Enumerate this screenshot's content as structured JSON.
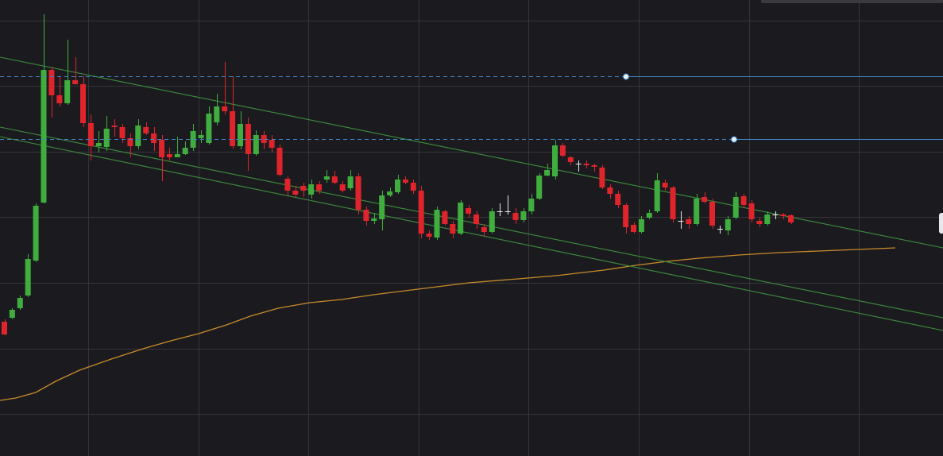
{
  "colors": {
    "background": "#1b1b1f",
    "grid": "#34343a",
    "bull": "#3fae3f",
    "bear": "#e0242b",
    "doji": "#e8e8e8",
    "trendline": "#3d8f3d",
    "moving_average": "#c98a2a",
    "horizontal_line": "#3f86c6",
    "handle": "#e8f2fb"
  },
  "chart_data": {
    "type": "candlestick",
    "title": "",
    "xlabel": "",
    "ylabel": "",
    "x_range": [
      0,
      115
    ],
    "y_range": [
      0,
      574
    ],
    "y_direction": "increasing-down",
    "grid": true,
    "grid_x": [
      11,
      25,
      39,
      53,
      67,
      81,
      95,
      109
    ],
    "grid_y": [
      26,
      108,
      191,
      273,
      356,
      439,
      521
    ],
    "candles": [
      [
        0,
        405,
        421,
        402,
        422
      ],
      [
        1,
        400,
        390,
        388,
        402
      ],
      [
        2,
        388,
        375,
        372,
        390
      ],
      [
        3,
        372,
        326,
        320,
        374
      ],
      [
        4,
        328,
        259,
        256,
        330
      ],
      [
        5,
        255,
        88,
        18,
        256
      ],
      [
        6,
        88,
        120,
        84,
        148
      ],
      [
        7,
        120,
        130,
        96,
        134
      ],
      [
        8,
        130,
        101,
        50,
        132
      ],
      [
        9,
        101,
        106,
        72,
        106
      ],
      [
        10,
        106,
        155,
        96,
        160
      ],
      [
        11,
        155,
        184,
        144,
        202
      ],
      [
        12,
        184,
        180,
        165,
        192
      ],
      [
        13,
        185,
        162,
        146,
        190
      ],
      [
        14,
        158,
        160,
        150,
        172
      ],
      [
        15,
        160,
        174,
        156,
        180
      ],
      [
        16,
        174,
        184,
        168,
        198
      ],
      [
        17,
        184,
        158,
        150,
        188
      ],
      [
        18,
        160,
        168,
        154,
        170
      ],
      [
        19,
        168,
        180,
        160,
        190
      ],
      [
        20,
        176,
        198,
        170,
        228
      ],
      [
        21,
        194,
        198,
        186,
        202
      ],
      [
        22,
        198,
        194,
        172,
        198
      ],
      [
        23,
        194,
        186,
        178,
        195
      ],
      [
        24,
        186,
        165,
        156,
        190
      ],
      [
        25,
        174,
        170,
        164,
        180
      ],
      [
        26,
        180,
        143,
        134,
        182
      ],
      [
        27,
        154,
        134,
        118,
        158
      ],
      [
        28,
        134,
        140,
        78,
        144
      ],
      [
        29,
        140,
        184,
        96,
        187
      ],
      [
        30,
        184,
        156,
        140,
        188
      ],
      [
        31,
        156,
        194,
        148,
        215
      ],
      [
        32,
        194,
        170,
        164,
        196
      ],
      [
        33,
        170,
        180,
        165,
        188
      ],
      [
        34,
        176,
        186,
        170,
        192
      ],
      [
        35,
        186,
        220,
        182,
        222
      ],
      [
        36,
        225,
        240,
        222,
        246
      ],
      [
        37,
        240,
        245,
        234,
        248
      ],
      [
        38,
        234,
        240,
        230,
        248
      ],
      [
        39,
        245,
        232,
        226,
        250
      ],
      [
        40,
        232,
        240,
        228,
        244
      ],
      [
        41,
        226,
        222,
        214,
        230
      ],
      [
        42,
        222,
        230,
        215,
        232
      ],
      [
        43,
        232,
        240,
        228,
        242
      ],
      [
        44,
        237,
        222,
        214,
        240
      ],
      [
        45,
        222,
        264,
        218,
        270
      ],
      [
        46,
        264,
        278,
        260,
        284
      ],
      [
        47,
        278,
        275,
        268,
        282
      ],
      [
        48,
        276,
        246,
        240,
        290
      ],
      [
        49,
        246,
        241,
        236,
        248
      ],
      [
        50,
        242,
        226,
        220,
        244
      ],
      [
        51,
        226,
        230,
        222,
        232
      ],
      [
        52,
        230,
        240,
        226,
        244
      ],
      [
        53,
        240,
        294,
        234,
        300
      ],
      [
        54,
        294,
        298,
        290,
        302
      ],
      [
        55,
        299,
        264,
        260,
        302
      ],
      [
        56,
        266,
        282,
        264,
        284
      ],
      [
        57,
        282,
        294,
        278,
        300
      ],
      [
        58,
        294,
        255,
        252,
        296
      ],
      [
        59,
        262,
        269,
        258,
        274
      ],
      [
        60,
        270,
        282,
        266,
        288
      ],
      [
        61,
        286,
        292,
        282,
        298
      ],
      [
        62,
        292,
        266,
        262,
        294
      ],
      [
        63,
        266,
        266,
        256,
        272
      ],
      [
        64,
        266,
        266,
        246,
        270
      ],
      [
        65,
        268,
        277,
        262,
        282
      ],
      [
        66,
        277,
        266,
        262,
        280
      ],
      [
        67,
        266,
        250,
        244,
        270
      ],
      [
        68,
        250,
        221,
        218,
        252
      ],
      [
        69,
        221,
        214,
        206,
        222
      ],
      [
        70,
        222,
        183,
        176,
        226
      ],
      [
        71,
        183,
        196,
        180,
        198
      ],
      [
        72,
        198,
        204,
        196,
        208
      ],
      [
        73,
        206,
        206,
        202,
        216
      ],
      [
        74,
        206,
        208,
        202,
        212
      ],
      [
        75,
        208,
        210,
        206,
        216
      ],
      [
        76,
        211,
        236,
        208,
        238
      ],
      [
        77,
        236,
        244,
        232,
        250
      ],
      [
        78,
        244,
        258,
        240,
        262
      ],
      [
        79,
        258,
        286,
        256,
        294
      ],
      [
        80,
        283,
        292,
        280,
        294
      ],
      [
        81,
        292,
        276,
        272,
        294
      ],
      [
        82,
        274,
        268,
        264,
        276
      ],
      [
        83,
        266,
        227,
        218,
        268
      ],
      [
        84,
        230,
        236,
        226,
        240
      ],
      [
        85,
        236,
        276,
        234,
        280
      ],
      [
        86,
        278,
        278,
        266,
        288
      ],
      [
        87,
        276,
        282,
        272,
        288
      ],
      [
        88,
        282,
        250,
        244,
        284
      ],
      [
        89,
        248,
        254,
        242,
        256
      ],
      [
        90,
        254,
        284,
        250,
        288
      ],
      [
        91,
        288,
        289,
        284,
        294
      ],
      [
        92,
        290,
        276,
        272,
        296
      ],
      [
        93,
        274,
        248,
        242,
        276
      ],
      [
        94,
        247,
        258,
        244,
        262
      ],
      [
        95,
        256,
        276,
        252,
        280
      ],
      [
        96,
        278,
        282,
        274,
        286
      ],
      [
        97,
        282,
        270,
        266,
        284
      ],
      [
        98,
        270,
        270,
        266,
        276
      ],
      [
        99,
        270,
        272,
        268,
        276
      ],
      [
        100,
        271,
        280,
        270,
        282
      ]
    ],
    "trendlines": [
      {
        "from": [
          0,
          72
        ],
        "to": [
          1187,
          312
        ]
      },
      {
        "from": [
          0,
          160
        ],
        "to": [
          1187,
          400
        ]
      },
      {
        "from": [
          0,
          172
        ],
        "to": [
          1187,
          416
        ]
      }
    ],
    "horizontal_lines": [
      {
        "y": 96,
        "handle_x": 788
      },
      {
        "y": 175,
        "handle_x": 924
      }
    ],
    "moving_average": [
      [
        0,
        504
      ],
      [
        20,
        501
      ],
      [
        45,
        494
      ],
      [
        70,
        480
      ],
      [
        100,
        466
      ],
      [
        140,
        452
      ],
      [
        180,
        439
      ],
      [
        215,
        429
      ],
      [
        250,
        420
      ],
      [
        285,
        409
      ],
      [
        315,
        398
      ],
      [
        350,
        388
      ],
      [
        390,
        381
      ],
      [
        430,
        377
      ],
      [
        470,
        371
      ],
      [
        510,
        366
      ],
      [
        550,
        361
      ],
      [
        590,
        356
      ],
      [
        640,
        352
      ],
      [
        700,
        347
      ],
      [
        760,
        340
      ],
      [
        800,
        334
      ],
      [
        840,
        329
      ],
      [
        880,
        325
      ],
      [
        930,
        321
      ],
      [
        980,
        318
      ],
      [
        1030,
        316
      ],
      [
        1080,
        314
      ],
      [
        1127,
        312
      ]
    ]
  }
}
